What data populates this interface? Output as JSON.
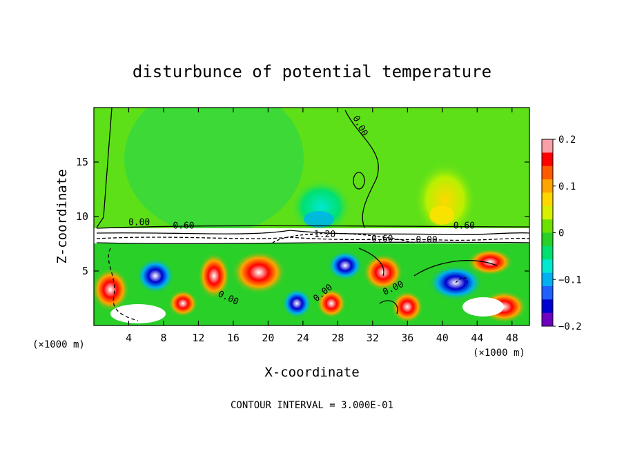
{
  "chart_data": {
    "type": "heatmap",
    "title": "disturbunce of potential temperature",
    "xlabel": "X-coordinate",
    "ylabel": "Z-coordinate",
    "x_unit": "(×1000 m)",
    "y_unit": "(×1000 m)",
    "xlim": [
      0,
      50
    ],
    "ylim": [
      0,
      20
    ],
    "x_ticks": [
      4,
      8,
      12,
      16,
      20,
      24,
      28,
      32,
      36,
      40,
      44,
      48
    ],
    "y_ticks": [
      5,
      10,
      15
    ],
    "colorbar": {
      "min": -0.2,
      "max": 0.2,
      "ticks": [
        "0.2",
        "0.1",
        "0",
        "−0.1",
        "−0.2"
      ],
      "tick_values": [
        0.2,
        0.1,
        0,
        -0.1,
        -0.2
      ],
      "colors": [
        "#f8a0a8",
        "#ff0000",
        "#ff5a00",
        "#ffa500",
        "#ffd700",
        "#d8f000",
        "#6ee000",
        "#28d028",
        "#00e070",
        "#00e8d0",
        "#00b0f0",
        "#2060ff",
        "#0000d0",
        "#7000c0"
      ]
    },
    "contour_labels": [
      "0.00",
      "0.00",
      "0.60",
      "-1.20",
      "-0.60",
      "0.60",
      "0.00",
      "0.00",
      "0.00",
      "0.00"
    ],
    "contour_interval_text": "CONTOUR INTERVAL = 3.000E-01",
    "annotations": [
      "(×1000 m)",
      "(×1000 m)"
    ]
  }
}
